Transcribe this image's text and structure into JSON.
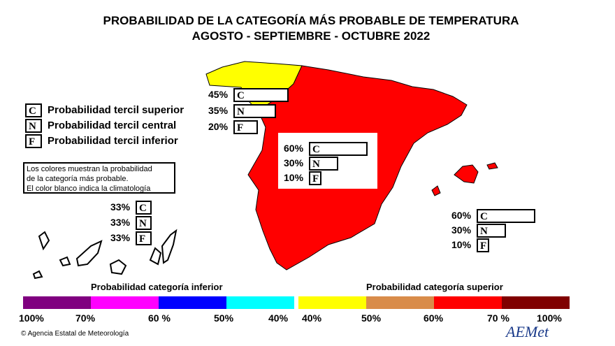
{
  "title": {
    "line1": "PROBABILIDAD DE LA CATEGORÍA MÁS PROBABLE DE TEMPERATURA",
    "line2": "AGOSTO - SEPTIEMBRE - OCTUBRE  2022"
  },
  "legend": {
    "items": [
      {
        "letter": "C",
        "label": "Probabilidad  tercil superior"
      },
      {
        "letter": "N",
        "label": "Probabilidad  tercil central"
      },
      {
        "letter": "F",
        "label": "Probabilidad  tercil inferior"
      }
    ],
    "note": [
      "Los colores muestran la probabilidad",
      "de la categoría más probable.",
      "El color blanco indica la climatología"
    ]
  },
  "regions": {
    "galicia": {
      "color": "#ffff00",
      "values": [
        {
          "pct": "45%",
          "letter": "C",
          "prob": 45
        },
        {
          "pct": "35%",
          "letter": "N",
          "prob": 35
        },
        {
          "pct": "20%",
          "letter": "F",
          "prob": 20
        }
      ]
    },
    "peninsula": {
      "color": "#ff0000",
      "values": [
        {
          "pct": "60%",
          "letter": "C",
          "prob": 60
        },
        {
          "pct": "30%",
          "letter": "N",
          "prob": 30
        },
        {
          "pct": "10%",
          "letter": "F",
          "prob": 10
        }
      ]
    },
    "baleares": {
      "color": "#ff0000",
      "values": [
        {
          "pct": "60%",
          "letter": "C",
          "prob": 60
        },
        {
          "pct": "30%",
          "letter": "N",
          "prob": 30
        },
        {
          "pct": "10%",
          "letter": "F",
          "prob": 10
        }
      ]
    },
    "canarias": {
      "color": "#ffffff",
      "values": [
        {
          "pct": "33%",
          "letter": "C",
          "prob": 33
        },
        {
          "pct": "33%",
          "letter": "N",
          "prob": 33
        },
        {
          "pct": "33%",
          "letter": "F",
          "prob": 33
        }
      ]
    }
  },
  "scale": {
    "inferior_title": "Probabilidad categoría inferior",
    "superior_title": "Probabilidad categoría superior",
    "inferior_colors": [
      "#800080",
      "#ff00ff",
      "#0000ff",
      "#00ffff"
    ],
    "superior_colors": [
      "#ffff00",
      "#d98c4a",
      "#ff0000",
      "#800000"
    ],
    "inferior_labels": [
      "100%",
      "70%",
      "60 %",
      "50%",
      "40%"
    ],
    "superior_labels": [
      "40%",
      "50%",
      "60%",
      "70 %",
      "100%"
    ]
  },
  "footer": {
    "credit": "© Agencia Estatal de Meteorología",
    "logo": "AEMet"
  }
}
